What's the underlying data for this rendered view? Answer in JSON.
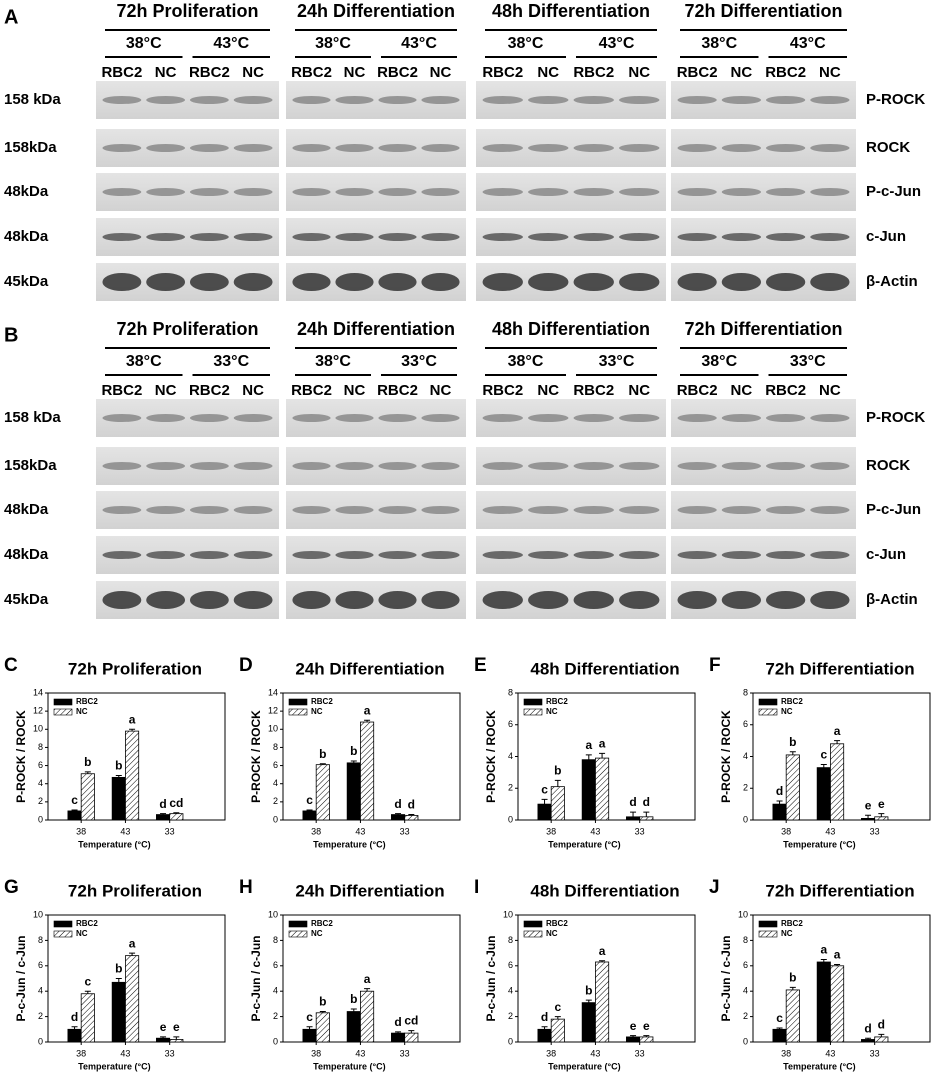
{
  "blots": [
    {
      "panel": "A",
      "groups": [
        {
          "title": "72h Proliferation",
          "temps": [
            "38°C",
            "43°C"
          ],
          "lanes": [
            "RBC2",
            "NC",
            "RBC2",
            "NC"
          ]
        },
        {
          "title": "24h Differentiation",
          "temps": [
            "38°C",
            "43°C"
          ],
          "lanes": [
            "RBC2",
            "NC",
            "RBC2",
            "NC"
          ]
        },
        {
          "title": "48h Differentiation",
          "temps": [
            "38°C",
            "43°C"
          ],
          "lanes": [
            "RBC2",
            "NC",
            "RBC2",
            "NC"
          ]
        },
        {
          "title": "72h Differentiation",
          "temps": [
            "38°C",
            "43°C"
          ],
          "lanes": [
            "RBC2",
            "NC",
            "RBC2",
            "NC"
          ]
        }
      ],
      "rows": [
        {
          "size": "158 kDa",
          "protein": "P-ROCK"
        },
        {
          "size": "158kDa",
          "protein": "ROCK"
        },
        {
          "size": "48kDa",
          "protein": "P-c-Jun"
        },
        {
          "size": "48kDa",
          "protein": "c-Jun"
        },
        {
          "size": "45kDa",
          "protein": "β-Actin"
        }
      ]
    },
    {
      "panel": "B",
      "groups": [
        {
          "title": "72h Proliferation",
          "temps": [
            "38°C",
            "33°C"
          ],
          "lanes": [
            "RBC2",
            "NC",
            "RBC2",
            "NC"
          ]
        },
        {
          "title": "24h Differentiation",
          "temps": [
            "38°C",
            "33°C"
          ],
          "lanes": [
            "RBC2",
            "NC",
            "RBC2",
            "NC"
          ]
        },
        {
          "title": "48h Differentiation",
          "temps": [
            "38°C",
            "33°C"
          ],
          "lanes": [
            "RBC2",
            "NC",
            "RBC2",
            "NC"
          ]
        },
        {
          "title": "72h Differentiation",
          "temps": [
            "38°C",
            "33°C"
          ],
          "lanes": [
            "RBC2",
            "NC",
            "RBC2",
            "NC"
          ]
        }
      ],
      "rows": [
        {
          "size": "158 kDa",
          "protein": "P-ROCK"
        },
        {
          "size": "158kDa",
          "protein": "ROCK"
        },
        {
          "size": "48kDa",
          "protein": "P-c-Jun"
        },
        {
          "size": "48kDa",
          "protein": "c-Jun"
        },
        {
          "size": "45kDa",
          "protein": "β-Actin"
        }
      ]
    }
  ],
  "chart_data": [
    {
      "type": "bar",
      "panel": "C",
      "title": "72h Proliferation",
      "ylabel": "P-ROCK / ROCK",
      "xlabel": "Temperature (°C)",
      "categories": [
        "38",
        "43",
        "33"
      ],
      "ylim": [
        0,
        14
      ],
      "yticks": [
        0,
        2,
        4,
        6,
        8,
        10,
        12,
        14
      ],
      "series": [
        {
          "name": "RBC2",
          "color": "#000000",
          "values": [
            1,
            4.7,
            0.6
          ],
          "errors": [
            0.1,
            0.2,
            0.1
          ],
          "significance": [
            "c",
            "b",
            "d"
          ]
        },
        {
          "name": "NC",
          "color": "#ffffff",
          "hatch": true,
          "values": [
            5.1,
            9.8,
            0.7
          ],
          "errors": [
            0.2,
            0.2,
            0.1
          ],
          "significance": [
            "b",
            "a",
            "cd"
          ]
        }
      ]
    },
    {
      "type": "bar",
      "panel": "D",
      "title": "24h Differentiation",
      "ylabel": "P-ROCK / ROCK",
      "xlabel": "Temperature (°C)",
      "categories": [
        "38",
        "43",
        "33"
      ],
      "ylim": [
        0,
        14
      ],
      "yticks": [
        0,
        2,
        4,
        6,
        8,
        10,
        12,
        14
      ],
      "series": [
        {
          "name": "RBC2",
          "color": "#000000",
          "values": [
            1,
            6.3,
            0.6
          ],
          "errors": [
            0.1,
            0.2,
            0.1
          ],
          "significance": [
            "c",
            "b",
            "d"
          ]
        },
        {
          "name": "NC",
          "color": "#ffffff",
          "hatch": true,
          "values": [
            6.1,
            10.8,
            0.5
          ],
          "errors": [
            0.1,
            0.2,
            0.1
          ],
          "significance": [
            "b",
            "a",
            "d"
          ]
        }
      ]
    },
    {
      "type": "bar",
      "panel": "E",
      "title": "48h Differentiation",
      "ylabel": "P-ROCK / ROCK",
      "xlabel": "Temperature (°C)",
      "categories": [
        "38",
        "43",
        "33"
      ],
      "ylim": [
        0,
        8
      ],
      "yticks": [
        0,
        2,
        4,
        6,
        8
      ],
      "series": [
        {
          "name": "RBC2",
          "color": "#000000",
          "values": [
            1,
            3.8,
            0.2
          ],
          "errors": [
            0.3,
            0.3,
            0.3
          ],
          "significance": [
            "c",
            "a",
            "d"
          ]
        },
        {
          "name": "NC",
          "color": "#ffffff",
          "hatch": true,
          "values": [
            2.1,
            3.9,
            0.2
          ],
          "errors": [
            0.4,
            0.3,
            0.3
          ],
          "significance": [
            "b",
            "a",
            "d"
          ]
        }
      ]
    },
    {
      "type": "bar",
      "panel": "F",
      "title": "72h Differentiation",
      "ylabel": "P-ROCK / ROCK",
      "xlabel": "Temperature (°C)",
      "categories": [
        "38",
        "43",
        "33"
      ],
      "ylim": [
        0,
        8
      ],
      "yticks": [
        0,
        2,
        4,
        6,
        8
      ],
      "series": [
        {
          "name": "RBC2",
          "color": "#000000",
          "values": [
            1,
            3.3,
            0.1
          ],
          "errors": [
            0.2,
            0.2,
            0.2
          ],
          "significance": [
            "d",
            "c",
            "e"
          ]
        },
        {
          "name": "NC",
          "color": "#ffffff",
          "hatch": true,
          "values": [
            4.1,
            4.8,
            0.2
          ],
          "errors": [
            0.2,
            0.2,
            0.2
          ],
          "significance": [
            "b",
            "a",
            "e"
          ]
        }
      ]
    },
    {
      "type": "bar",
      "panel": "G",
      "title": "72h Proliferation",
      "ylabel": "P-c-Jun / c-Jun",
      "xlabel": "Temperature (°C)",
      "categories": [
        "38",
        "43",
        "33"
      ],
      "ylim": [
        0,
        10
      ],
      "yticks": [
        0,
        2,
        4,
        6,
        8,
        10
      ],
      "series": [
        {
          "name": "RBC2",
          "color": "#000000",
          "values": [
            1,
            4.7,
            0.3
          ],
          "errors": [
            0.2,
            0.3,
            0.1
          ],
          "significance": [
            "d",
            "b",
            "e"
          ]
        },
        {
          "name": "NC",
          "color": "#ffffff",
          "hatch": true,
          "values": [
            3.8,
            6.8,
            0.2
          ],
          "errors": [
            0.2,
            0.2,
            0.2
          ],
          "significance": [
            "c",
            "a",
            "e"
          ]
        }
      ]
    },
    {
      "type": "bar",
      "panel": "H",
      "title": "24h Differentiation",
      "ylabel": "P-c-Jun / c-Jun",
      "xlabel": "Temperature (°C)",
      "categories": [
        "38",
        "43",
        "33"
      ],
      "ylim": [
        0,
        10
      ],
      "yticks": [
        0,
        2,
        4,
        6,
        8,
        10
      ],
      "series": [
        {
          "name": "RBC2",
          "color": "#000000",
          "values": [
            1,
            2.4,
            0.7
          ],
          "errors": [
            0.2,
            0.2,
            0.1
          ],
          "significance": [
            "c",
            "b",
            "d"
          ]
        },
        {
          "name": "NC",
          "color": "#ffffff",
          "hatch": true,
          "values": [
            2.3,
            4.0,
            0.7
          ],
          "errors": [
            0.1,
            0.2,
            0.2
          ],
          "significance": [
            "b",
            "a",
            "cd"
          ]
        }
      ]
    },
    {
      "type": "bar",
      "panel": "I",
      "title": "48h Differentiation",
      "ylabel": "P-c-Jun / c-Jun",
      "xlabel": "Temperature (°C)",
      "categories": [
        "38",
        "43",
        "33"
      ],
      "ylim": [
        0,
        10
      ],
      "yticks": [
        0,
        2,
        4,
        6,
        8,
        10
      ],
      "series": [
        {
          "name": "RBC2",
          "color": "#000000",
          "values": [
            1,
            3.1,
            0.4
          ],
          "errors": [
            0.2,
            0.2,
            0.1
          ],
          "significance": [
            "d",
            "b",
            "e"
          ]
        },
        {
          "name": "NC",
          "color": "#ffffff",
          "hatch": true,
          "values": [
            1.8,
            6.3,
            0.4
          ],
          "errors": [
            0.2,
            0.1,
            0.1
          ],
          "significance": [
            "c",
            "a",
            "e"
          ]
        }
      ]
    },
    {
      "type": "bar",
      "panel": "J",
      "title": "72h Differentiation",
      "ylabel": "P-c-Jun / c-Jun",
      "xlabel": "Temperature (°C)",
      "categories": [
        "38",
        "43",
        "33"
      ],
      "ylim": [
        0,
        10
      ],
      "yticks": [
        0,
        2,
        4,
        6,
        8,
        10
      ],
      "series": [
        {
          "name": "RBC2",
          "color": "#000000",
          "values": [
            1,
            6.3,
            0.2
          ],
          "errors": [
            0.1,
            0.2,
            0.1
          ],
          "significance": [
            "c",
            "a",
            "d"
          ]
        },
        {
          "name": "NC",
          "color": "#ffffff",
          "hatch": true,
          "values": [
            4.1,
            6.0,
            0.4
          ],
          "errors": [
            0.2,
            0.1,
            0.2
          ],
          "significance": [
            "b",
            "a",
            "d"
          ]
        }
      ]
    }
  ]
}
